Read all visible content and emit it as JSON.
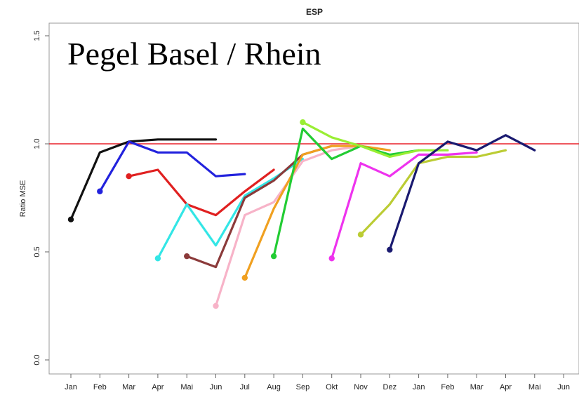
{
  "chart_data": {
    "type": "line",
    "title": "ESP",
    "ylabel": "Ratio MSE",
    "annotation": "Pegel Basel / Rhein",
    "x_ticks": [
      "Jan",
      "Feb",
      "Mar",
      "Apr",
      "Mai",
      "Jun",
      "Jul",
      "Aug",
      "Sep",
      "Okt",
      "Nov",
      "Dez",
      "Jan",
      "Feb",
      "Mar",
      "Apr",
      "Mai",
      "Jun"
    ],
    "y_ticks": [
      "0.0",
      "0.5",
      "1.0",
      "1.5"
    ],
    "ylim": [
      0,
      1.5
    ],
    "reference_line": {
      "y": 1.0,
      "color": "#e8202a"
    },
    "series": [
      {
        "color": "#111111",
        "start": 0,
        "values": [
          0.65,
          0.96,
          1.01,
          1.02,
          1.02,
          1.02
        ]
      },
      {
        "color": "#2222dd",
        "start": 1,
        "values": [
          0.78,
          1.01,
          0.96,
          0.96,
          0.85,
          0.86
        ]
      },
      {
        "color": "#e02020",
        "start": 2,
        "values": [
          0.85,
          0.88,
          0.72,
          0.67,
          0.78,
          0.88
        ]
      },
      {
        "color": "#33e6e6",
        "start": 3,
        "values": [
          0.47,
          0.72,
          0.53,
          0.76,
          0.84,
          0.93
        ]
      },
      {
        "color": "#8b3a3a",
        "start": 4,
        "values": [
          0.48,
          0.43,
          0.75,
          0.83,
          0.95,
          0.99
        ]
      },
      {
        "color": "#f7b3c8",
        "start": 5,
        "values": [
          0.25,
          0.67,
          0.73,
          0.92,
          0.97,
          0.99
        ]
      },
      {
        "color": "#f0a020",
        "start": 6,
        "values": [
          0.38,
          0.7,
          0.95,
          0.99,
          0.99,
          0.97
        ]
      },
      {
        "color": "#22cc33",
        "start": 7,
        "values": [
          0.48,
          1.07,
          0.93,
          0.99,
          0.95,
          0.97
        ]
      },
      {
        "color": "#99ee33",
        "start": 8,
        "values": [
          1.1,
          1.03,
          0.99,
          0.94,
          0.97,
          0.97
        ]
      },
      {
        "color": "#ee33ee",
        "start": 9,
        "values": [
          0.47,
          0.91,
          0.85,
          0.95,
          0.95,
          0.96
        ]
      },
      {
        "color": "#bbcc33",
        "start": 10,
        "values": [
          0.58,
          0.72,
          0.91,
          0.94,
          0.94,
          0.97
        ]
      },
      {
        "color": "#1a1a70",
        "start": 11,
        "values": [
          0.51,
          0.91,
          1.01,
          0.97,
          1.04,
          0.97
        ]
      }
    ]
  }
}
